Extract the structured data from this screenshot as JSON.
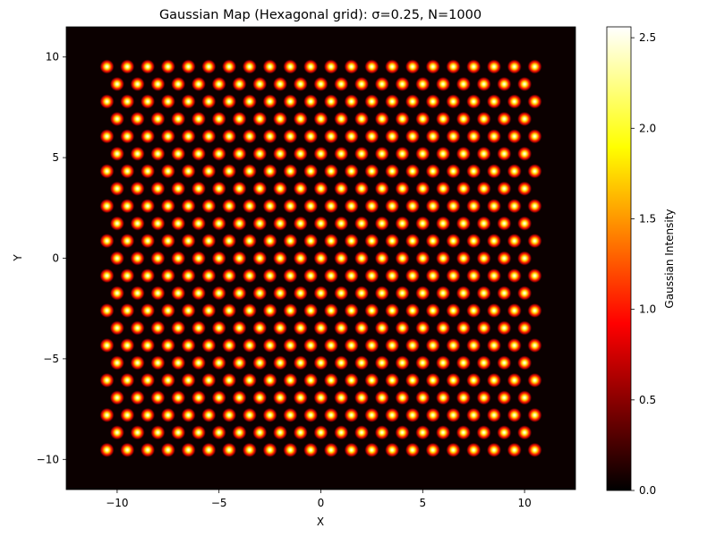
{
  "chart_data": {
    "type": "heatmap",
    "title": "Gaussian Map (Hexagonal grid): σ=0.25, N=1000",
    "xlabel": "X",
    "ylabel": "Y",
    "xlim": [
      -12.5,
      12.5
    ],
    "ylim": [
      -11.5,
      11.5
    ],
    "xticks": [
      -10,
      -5,
      0,
      5,
      10
    ],
    "xtick_labels": [
      "−10",
      "−5",
      "0",
      "5",
      "10"
    ],
    "yticks": [
      -10,
      -5,
      0,
      5,
      10
    ],
    "ytick_labels": [
      "−10",
      "−5",
      "0",
      "5",
      "10"
    ],
    "grid": false,
    "colormap": "hot",
    "background_color": "#0b0000",
    "sigma": 0.25,
    "hex_grid": {
      "spacing": 1.0,
      "row_step": 0.866,
      "x_range": [
        -10.5,
        10.5
      ],
      "y_range": [
        -9.53,
        9.53
      ],
      "rows": 23,
      "points_per_even_row": 22,
      "points_per_odd_row": 21,
      "even_row_x_start": -10.5,
      "odd_row_x_start": -10.0
    },
    "colorbar": {
      "label": "Gaussian Intensity",
      "range": [
        0.0,
        2.56
      ],
      "ticks": [
        0.0,
        0.5,
        1.0,
        1.5,
        2.0,
        2.5
      ],
      "tick_labels": [
        "0.0",
        "0.5",
        "1.0",
        "1.5",
        "2.0",
        "2.5"
      ]
    }
  }
}
